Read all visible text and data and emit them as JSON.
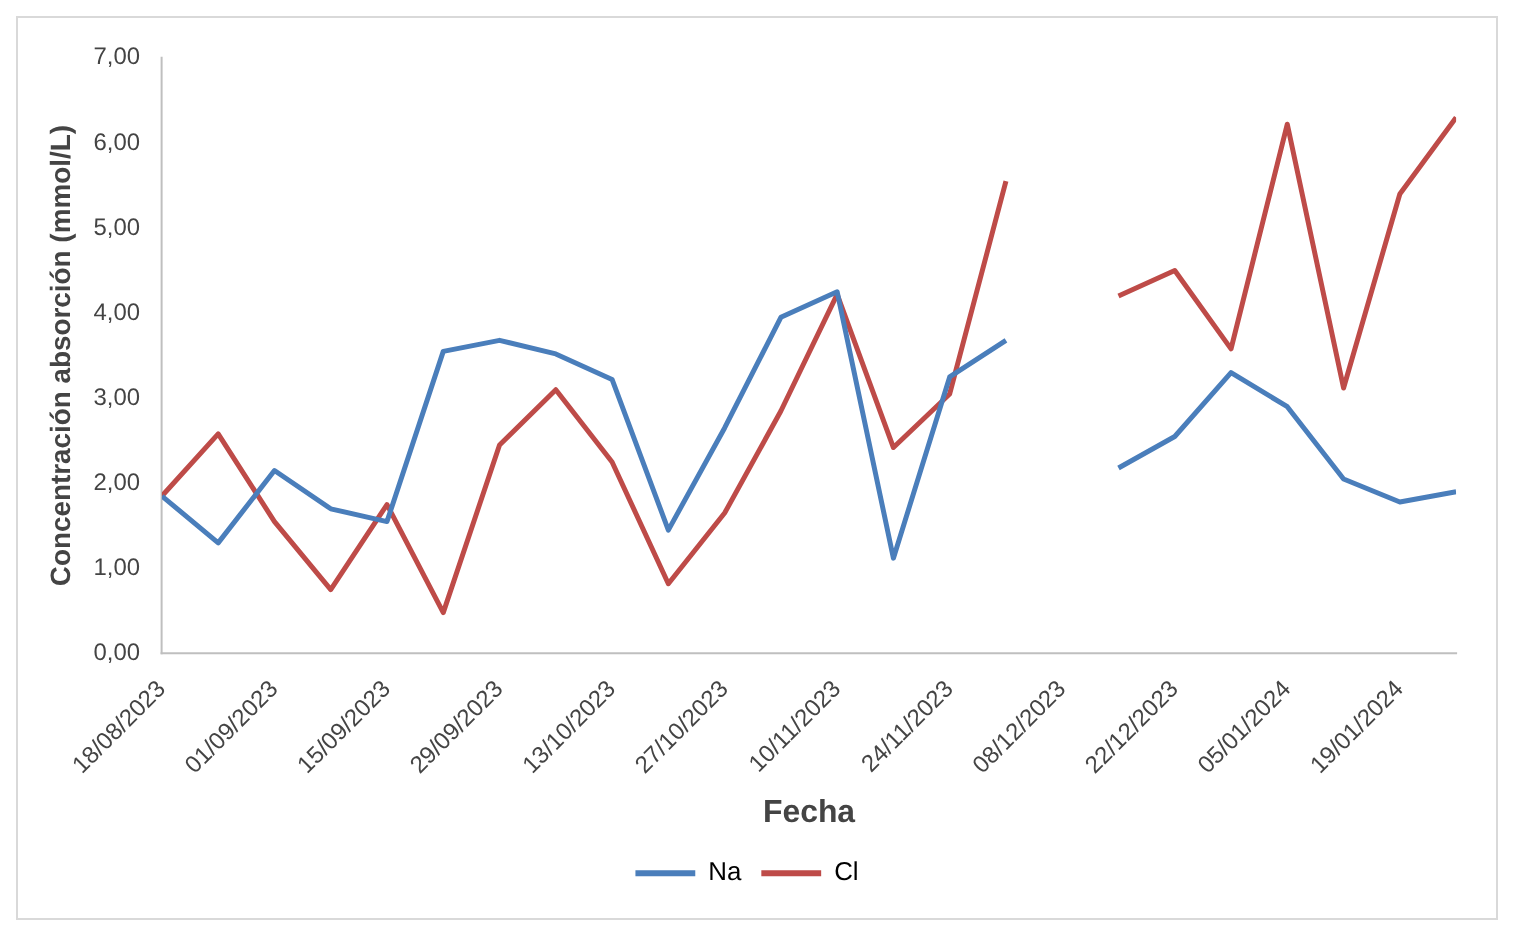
{
  "chart_data": {
    "type": "line",
    "xlabel": "Fecha",
    "ylabel": "Concentración absorción (mmol/L)",
    "x": [
      "2023-08-18",
      "2023-08-25",
      "2023-09-01",
      "2023-09-08",
      "2023-09-15",
      "2023-09-22",
      "2023-09-29",
      "2023-10-06",
      "2023-10-13",
      "2023-10-20",
      "2023-10-27",
      "2023-11-03",
      "2023-11-10",
      "2023-11-17",
      "2023-11-24",
      "2023-12-01",
      "2023-12-08",
      "2023-12-15",
      "2023-12-22",
      "2023-12-29",
      "2024-01-05",
      "2024-01-12",
      "2024-01-19",
      "2024-01-26"
    ],
    "series": [
      {
        "name": "Na",
        "color": "#4a7ebb",
        "values": [
          1.85,
          1.3,
          2.15,
          1.7,
          1.55,
          3.55,
          3.68,
          3.52,
          3.22,
          1.45,
          2.65,
          3.95,
          4.25,
          1.12,
          3.25,
          3.68,
          null,
          2.18,
          2.55,
          3.3,
          2.9,
          2.05,
          1.78,
          1.9
        ]
      },
      {
        "name": "Cl",
        "color": "#be4b48",
        "values": [
          1.85,
          2.58,
          1.55,
          0.75,
          1.75,
          0.48,
          2.45,
          3.1,
          2.25,
          0.82,
          1.65,
          2.85,
          4.22,
          2.42,
          3.05,
          5.55,
          null,
          4.2,
          4.5,
          3.58,
          6.22,
          3.12,
          5.4,
          6.3
        ]
      }
    ],
    "xlim": [
      "2023-08-18",
      "2024-01-26"
    ],
    "xticks": [
      {
        "value": "2023-08-18",
        "label": "18/08/2023"
      },
      {
        "value": "2023-09-01",
        "label": "01/09/2023"
      },
      {
        "value": "2023-09-15",
        "label": "15/09/2023"
      },
      {
        "value": "2023-09-29",
        "label": "29/09/2023"
      },
      {
        "value": "2023-10-13",
        "label": "13/10/2023"
      },
      {
        "value": "2023-10-27",
        "label": "27/10/2023"
      },
      {
        "value": "2023-11-10",
        "label": "10/11/2023"
      },
      {
        "value": "2023-11-24",
        "label": "24/11/2023"
      },
      {
        "value": "2023-12-08",
        "label": "08/12/2023"
      },
      {
        "value": "2023-12-22",
        "label": "22/12/2023"
      },
      {
        "value": "2024-01-05",
        "label": "05/01/2024"
      },
      {
        "value": "2024-01-19",
        "label": "19/01/2024"
      }
    ],
    "ylim": [
      0,
      7
    ],
    "yticks": [
      {
        "value": 0,
        "label": "0,00"
      },
      {
        "value": 1,
        "label": "1,00"
      },
      {
        "value": 2,
        "label": "2,00"
      },
      {
        "value": 3,
        "label": "3,00"
      },
      {
        "value": 4,
        "label": "4,00"
      },
      {
        "value": 5,
        "label": "5,00"
      },
      {
        "value": 6,
        "label": "6,00"
      },
      {
        "value": 7,
        "label": "7,00"
      }
    ],
    "grid": false,
    "legend": "bottom",
    "marker": "none",
    "line_style": "solid"
  }
}
